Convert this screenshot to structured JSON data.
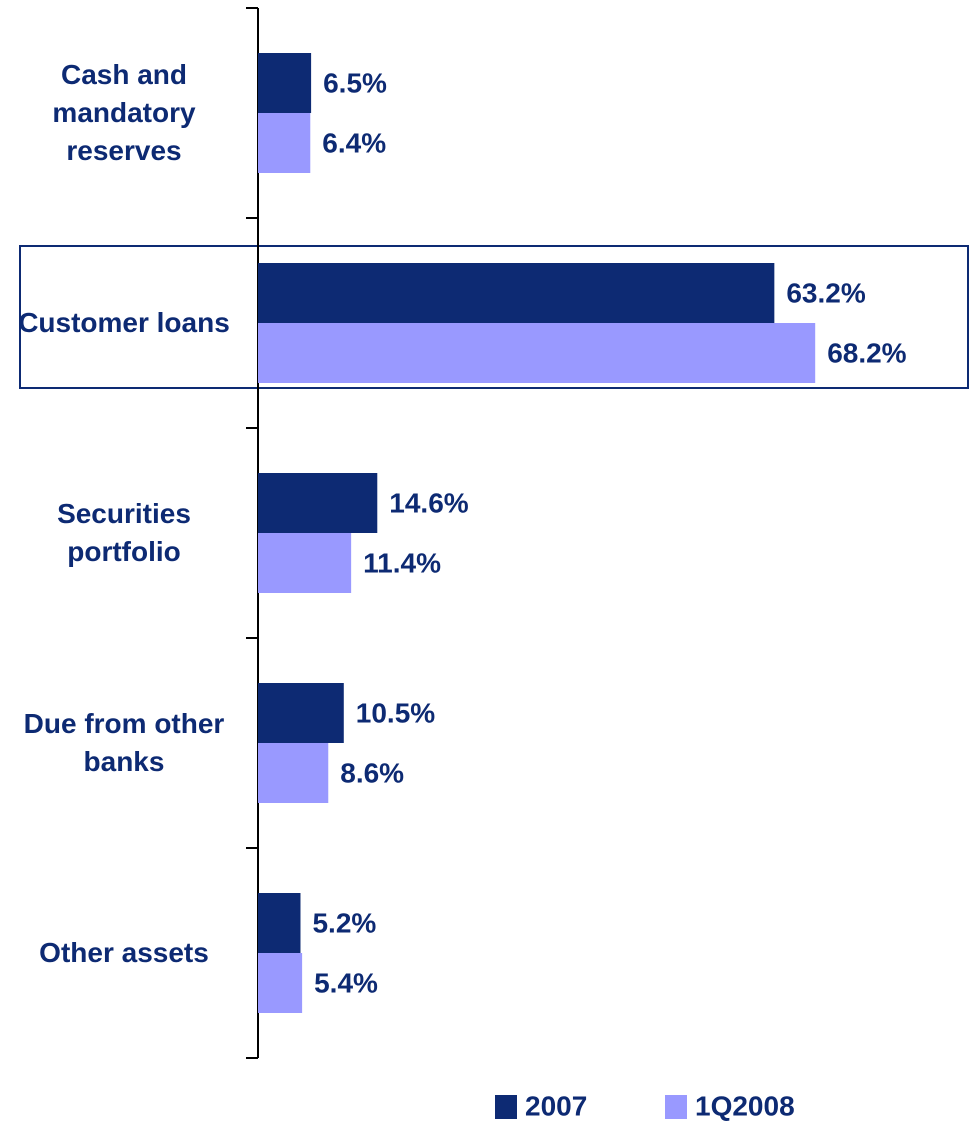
{
  "chart_data": {
    "type": "bar",
    "orientation": "horizontal",
    "categories": [
      "Cash and mandatory reserves",
      "Customer loans",
      "Securities portfolio",
      "Due from other banks",
      "Other assets"
    ],
    "series": [
      {
        "name": "2007",
        "color": "#0d2a73",
        "values": [
          6.5,
          63.2,
          14.6,
          10.5,
          5.2
        ],
        "value_labels": [
          "6.5%",
          "63.2%",
          "14.6%",
          "10.5%",
          "5.2%"
        ]
      },
      {
        "name": "1Q2008",
        "color": "#9999ff",
        "values": [
          6.4,
          68.2,
          11.4,
          8.6,
          5.4
        ],
        "value_labels": [
          "6.4%",
          "68.2%",
          "11.4%",
          "8.6%",
          "5.4%"
        ]
      }
    ]
  }
}
